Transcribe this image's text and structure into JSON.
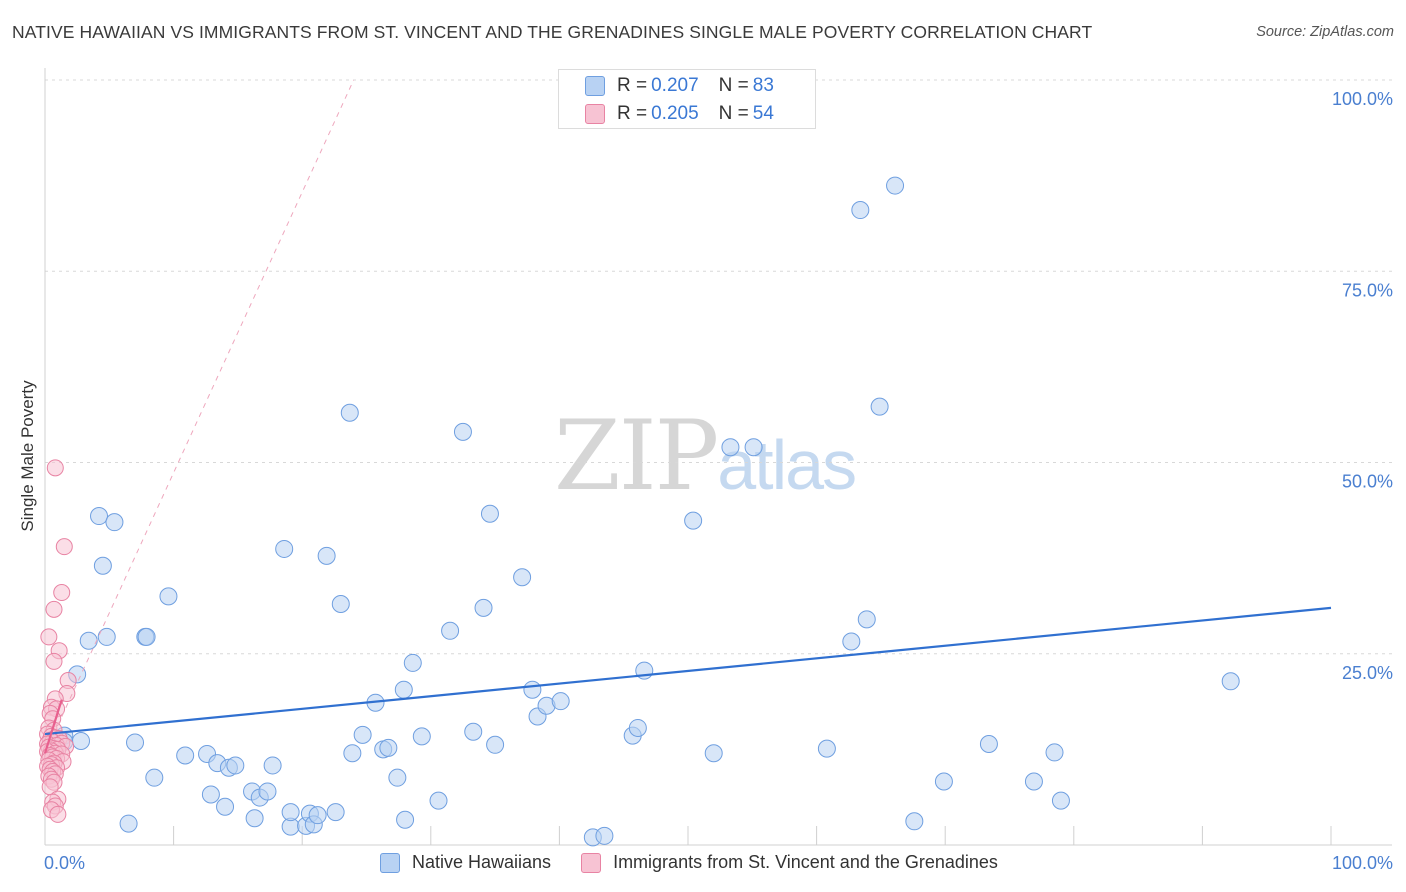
{
  "title": "NATIVE HAWAIIAN VS IMMIGRANTS FROM ST. VINCENT AND THE GRENADINES SINGLE MALE POVERTY CORRELATION CHART",
  "source": "Source: ZipAtlas.com",
  "watermark": {
    "zip": "ZIP",
    "atlas": "atlas"
  },
  "legend": {
    "r_label": "R =",
    "n_label": "N =",
    "series": [
      {
        "r": "0.207",
        "n": "83"
      },
      {
        "r": "0.205",
        "n": "54"
      }
    ]
  },
  "bottom_legend": [
    "Native Hawaiians",
    "Immigrants from St. Vincent and the Grenadines"
  ],
  "colors": {
    "blue_fill": "#b8d2f3",
    "blue_stroke": "#6f9fe0",
    "blue_line": "#3070d0",
    "pink_fill": "#f7c3d3",
    "pink_stroke": "#e883a3",
    "pink_line": "#e8608e",
    "grid": "#d8d8d8",
    "axis_text": "#4a7fd0"
  },
  "chart_data": {
    "type": "scatter",
    "title": "NATIVE HAWAIIAN VS IMMIGRANTS FROM ST. VINCENT AND THE GRENADINES SINGLE MALE POVERTY CORRELATION CHART",
    "xlabel": "",
    "ylabel": "Single Male Poverty",
    "xlim": [
      0,
      100
    ],
    "ylim": [
      0,
      100
    ],
    "x_tick_labels": [
      "0.0%",
      "100.0%"
    ],
    "y_ticks": [
      25,
      50,
      75,
      100
    ],
    "y_tick_labels": [
      "25.0%",
      "50.0%",
      "75.0%",
      "100.0%"
    ],
    "series": [
      {
        "name": "Native Hawaiians",
        "r": 0.207,
        "n": 83,
        "trend": {
          "x": [
            0,
            100
          ],
          "y": [
            14.5,
            31
          ]
        },
        "points": [
          [
            4.2,
            43
          ],
          [
            5.4,
            42.2
          ],
          [
            4.5,
            36.5
          ],
          [
            2.5,
            22.3
          ],
          [
            3.4,
            26.7
          ],
          [
            4.8,
            27.2
          ],
          [
            7.8,
            27.2
          ],
          [
            9.6,
            32.5
          ],
          [
            1.5,
            14.3
          ],
          [
            0.9,
            12.8
          ],
          [
            1.5,
            13.5
          ],
          [
            7.0,
            13.4
          ],
          [
            8.5,
            8.8
          ],
          [
            6.5,
            2.8
          ],
          [
            10.9,
            11.7
          ],
          [
            12.6,
            11.9
          ],
          [
            12.9,
            6.6
          ],
          [
            13.4,
            10.7
          ],
          [
            14.3,
            10.1
          ],
          [
            14.0,
            5.0
          ],
          [
            14.8,
            10.4
          ],
          [
            16.1,
            7.0
          ],
          [
            16.3,
            3.5
          ],
          [
            16.7,
            6.2
          ],
          [
            17.3,
            7.0
          ],
          [
            17.7,
            10.4
          ],
          [
            18.6,
            38.7
          ],
          [
            19.1,
            2.4
          ],
          [
            19.1,
            4.3
          ],
          [
            20.3,
            2.5
          ],
          [
            20.6,
            4.1
          ],
          [
            20.9,
            2.7
          ],
          [
            21.2,
            3.9
          ],
          [
            21.9,
            37.8
          ],
          [
            22.6,
            4.3
          ],
          [
            23.0,
            31.5
          ],
          [
            23.7,
            56.5
          ],
          [
            23.9,
            12.0
          ],
          [
            24.7,
            14.4
          ],
          [
            25.7,
            18.6
          ],
          [
            26.3,
            12.5
          ],
          [
            26.7,
            12.7
          ],
          [
            27.4,
            8.8
          ],
          [
            27.9,
            20.3
          ],
          [
            28.0,
            3.3
          ],
          [
            28.6,
            23.8
          ],
          [
            29.3,
            14.2
          ],
          [
            30.6,
            5.8
          ],
          [
            31.5,
            28.0
          ],
          [
            32.5,
            54.0
          ],
          [
            33.3,
            14.8
          ],
          [
            34.1,
            31.0
          ],
          [
            34.6,
            43.3
          ],
          [
            35.0,
            13.1
          ],
          [
            37.1,
            35.0
          ],
          [
            37.9,
            20.3
          ],
          [
            38.3,
            16.8
          ],
          [
            39.0,
            18.2
          ],
          [
            40.1,
            18.8
          ],
          [
            42.6,
            1.0
          ],
          [
            43.5,
            1.2
          ],
          [
            45.7,
            14.3
          ],
          [
            46.1,
            15.3
          ],
          [
            46.6,
            22.8
          ],
          [
            50.4,
            42.4
          ],
          [
            52.0,
            12.0
          ],
          [
            53.3,
            52.0
          ],
          [
            55.1,
            52.0
          ],
          [
            60.8,
            12.6
          ],
          [
            62.7,
            26.6
          ],
          [
            63.4,
            83.0
          ],
          [
            63.9,
            29.5
          ],
          [
            64.9,
            57.3
          ],
          [
            66.1,
            86.2
          ],
          [
            67.6,
            3.1
          ],
          [
            69.9,
            8.3
          ],
          [
            73.4,
            13.2
          ],
          [
            76.9,
            8.3
          ],
          [
            78.5,
            12.1
          ],
          [
            79.0,
            5.8
          ],
          [
            92.2,
            21.4
          ],
          [
            7.9,
            27.2
          ],
          [
            2.8,
            13.6
          ]
        ]
      },
      {
        "name": "Immigrants from St. Vincent and the Grenadines",
        "r": 0.205,
        "n": 54,
        "trend": {
          "x": [
            0,
            1.3
          ],
          "y": [
            12,
            19
          ]
        },
        "trend_ext": {
          "x": [
            0,
            24
          ],
          "y": [
            12,
            100
          ]
        },
        "points": [
          [
            0.8,
            49.3
          ],
          [
            1.5,
            39.0
          ],
          [
            1.3,
            33.0
          ],
          [
            0.7,
            30.8
          ],
          [
            0.3,
            27.2
          ],
          [
            1.1,
            25.4
          ],
          [
            0.7,
            24.0
          ],
          [
            1.8,
            21.5
          ],
          [
            1.7,
            19.8
          ],
          [
            0.8,
            19.1
          ],
          [
            0.5,
            18.0
          ],
          [
            0.9,
            17.8
          ],
          [
            0.4,
            17.2
          ],
          [
            0.6,
            16.5
          ],
          [
            0.3,
            15.3
          ],
          [
            0.7,
            15.0
          ],
          [
            0.2,
            14.5
          ],
          [
            0.5,
            14.2
          ],
          [
            0.8,
            14.0
          ],
          [
            1.1,
            13.9
          ],
          [
            0.4,
            13.7
          ],
          [
            0.6,
            13.5
          ],
          [
            1.3,
            13.3
          ],
          [
            0.2,
            13.2
          ],
          [
            0.9,
            13.0
          ],
          [
            1.6,
            12.9
          ],
          [
            0.3,
            12.8
          ],
          [
            0.7,
            12.6
          ],
          [
            1.0,
            12.5
          ],
          [
            0.5,
            12.3
          ],
          [
            0.2,
            12.2
          ],
          [
            0.8,
            12.0
          ],
          [
            1.3,
            11.9
          ],
          [
            0.4,
            11.7
          ],
          [
            0.6,
            11.5
          ],
          [
            0.9,
            11.3
          ],
          [
            0.3,
            11.1
          ],
          [
            1.4,
            10.9
          ],
          [
            0.7,
            10.7
          ],
          [
            0.5,
            10.5
          ],
          [
            0.2,
            10.3
          ],
          [
            0.9,
            10.1
          ],
          [
            0.4,
            9.9
          ],
          [
            0.6,
            9.6
          ],
          [
            0.8,
            9.3
          ],
          [
            0.3,
            9.0
          ],
          [
            0.5,
            8.6
          ],
          [
            0.7,
            8.2
          ],
          [
            0.4,
            7.6
          ],
          [
            1.0,
            6.0
          ],
          [
            0.6,
            5.6
          ],
          [
            0.8,
            5.1
          ],
          [
            0.5,
            4.6
          ],
          [
            1.0,
            4.0
          ]
        ]
      }
    ]
  }
}
